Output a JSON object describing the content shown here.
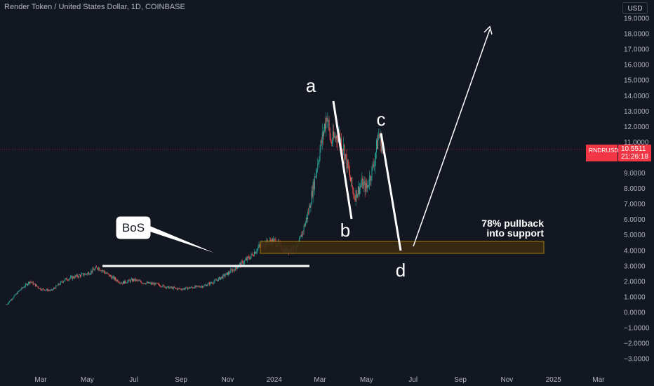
{
  "header": {
    "title": "Render Token / United States Dollar, 1D, COINBASE"
  },
  "price_axis": {
    "currency": "USD"
  },
  "last_price": {
    "symbol": "RNDRUSD",
    "value": "10.5511",
    "countdown": "21:26:18"
  },
  "colors": {
    "background": "#131722",
    "up": "#26a69a",
    "down": "#ef5350",
    "last_price": "#f23645",
    "zone_fill": "#3b2a12",
    "zone_border": "#b8860b",
    "drawing": "#ffffff"
  },
  "annotations": {
    "bos": "BoS",
    "a": "a",
    "b": "b",
    "c": "c",
    "d": "d",
    "zone_line1": "78% pullback",
    "zone_line2": "into support"
  },
  "chart_data": {
    "type": "candlestick",
    "title": "Render Token / United States Dollar, 1D, COINBASE",
    "ylim": [
      -3,
      19.5
    ],
    "y_ticks": [
      "19.0000",
      "18.0000",
      "17.0000",
      "16.0000",
      "15.0000",
      "14.0000",
      "13.0000",
      "12.0000",
      "11.0000",
      "10.0000",
      "9.0000",
      "8.0000",
      "7.0000",
      "6.0000",
      "5.0000",
      "4.0000",
      "3.0000",
      "2.0000",
      "1.0000",
      "0.0000",
      "−1.0000",
      "−2.0000",
      "−3.0000"
    ],
    "y_tick_values": [
      19,
      18,
      17,
      16,
      15,
      14,
      13,
      12,
      11,
      10,
      9,
      8,
      7,
      6,
      5,
      4,
      3,
      2,
      1,
      0,
      -1,
      -2,
      -3
    ],
    "x_ticks": [
      "Mar",
      "May",
      "Jul",
      "Sep",
      "Nov",
      "2024",
      "Mar",
      "May",
      "Jul",
      "Sep",
      "Nov",
      "2025",
      "Mar"
    ],
    "x_tick_dates": [
      "2023-03-01",
      "2023-05-01",
      "2023-07-01",
      "2023-09-01",
      "2023-11-01",
      "2024-01-01",
      "2024-03-01",
      "2024-05-01",
      "2024-07-01",
      "2024-09-01",
      "2024-11-01",
      "2025-01-01",
      "2025-03-01"
    ],
    "series": [
      {
        "x": [
          "2023-01-15",
          "2023-02-01",
          "2023-02-15",
          "2023-03-01",
          "2023-03-15",
          "2023-04-01",
          "2023-04-15",
          "2023-05-01",
          "2023-05-15",
          "2023-06-01",
          "2023-06-15",
          "2023-07-01",
          "2023-07-15",
          "2023-08-01",
          "2023-08-15",
          "2023-09-01",
          "2023-09-15",
          "2023-10-01",
          "2023-10-15",
          "2023-11-01",
          "2023-11-15",
          "2023-12-01",
          "2023-12-15",
          "2024-01-01",
          "2024-01-15",
          "2024-02-01",
          "2024-02-15",
          "2024-03-01",
          "2024-03-10",
          "2024-03-15",
          "2024-03-25",
          "2024-04-01",
          "2024-04-10",
          "2024-04-15",
          "2024-04-25",
          "2024-05-01",
          "2024-05-10",
          "2024-05-17",
          "2024-05-22"
        ],
        "y": [
          0.5,
          1.4,
          2.0,
          1.5,
          1.4,
          2.1,
          2.3,
          2.5,
          2.9,
          2.3,
          1.9,
          2.1,
          1.9,
          1.8,
          1.6,
          1.5,
          1.6,
          1.7,
          2.0,
          2.5,
          3.0,
          3.6,
          4.4,
          4.6,
          4.0,
          4.2,
          6.5,
          10.5,
          12.8,
          11.0,
          11.5,
          10.6,
          8.5,
          7.5,
          8.3,
          8.0,
          9.5,
          11.5,
          10.55
        ]
      }
    ],
    "horizontal_level": 3.0,
    "support_zone": [
      3.8,
      4.6
    ]
  }
}
